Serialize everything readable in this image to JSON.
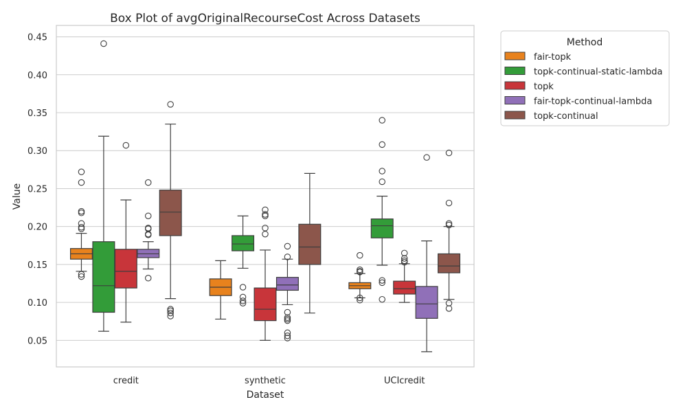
{
  "chart_data": {
    "type": "box",
    "title": "Box Plot of avgOriginalRecourseCost Across Datasets",
    "xlabel": "Dataset",
    "ylabel": "Value",
    "ylim": [
      0.015,
      0.465
    ],
    "yticks": [
      0.05,
      0.1,
      0.15,
      0.2,
      0.25,
      0.3,
      0.35,
      0.4,
      0.45
    ],
    "ytick_labels": [
      "0.05",
      "0.10",
      "0.15",
      "0.20",
      "0.25",
      "0.30",
      "0.35",
      "0.40",
      "0.45"
    ],
    "grid": "horizontal",
    "categories": [
      "credit",
      "synthetic",
      "UCIcredit"
    ],
    "legend": {
      "title": "Method",
      "placement": "outside-right"
    },
    "series": [
      {
        "name": "fair-topk",
        "color": "#e8821d",
        "boxes": [
          {
            "category": "credit",
            "whislo": 0.141,
            "q1": 0.157,
            "med": 0.164,
            "q3": 0.171,
            "whishi": 0.191,
            "fliers": [
              0.272,
              0.258,
              0.22,
              0.218,
              0.204,
              0.199,
              0.197,
              0.137,
              0.134
            ]
          },
          {
            "category": "synthetic",
            "whislo": 0.078,
            "q1": 0.109,
            "med": 0.12,
            "q3": 0.131,
            "whishi": 0.155,
            "fliers": []
          },
          {
            "category": "UCIcredit",
            "whislo": 0.106,
            "q1": 0.118,
            "med": 0.122,
            "q3": 0.126,
            "whishi": 0.138,
            "fliers": [
              0.162,
              0.143,
              0.141,
              0.14,
              0.106,
              0.103
            ]
          }
        ]
      },
      {
        "name": "topk-continual-static-lambda",
        "color": "#339c39",
        "boxes": [
          {
            "category": "credit",
            "whislo": 0.062,
            "q1": 0.087,
            "med": 0.122,
            "q3": 0.18,
            "whishi": 0.319,
            "fliers": [
              0.441
            ]
          },
          {
            "category": "synthetic",
            "whislo": 0.145,
            "q1": 0.168,
            "med": 0.177,
            "q3": 0.188,
            "whishi": 0.214,
            "fliers": [
              0.12,
              0.107,
              0.102,
              0.099
            ]
          },
          {
            "category": "UCIcredit",
            "whislo": 0.149,
            "q1": 0.185,
            "med": 0.201,
            "q3": 0.21,
            "whishi": 0.24,
            "fliers": [
              0.34,
              0.308,
              0.273,
              0.259,
              0.129,
              0.126,
              0.104
            ]
          }
        ]
      },
      {
        "name": "topk",
        "color": "#c8353a",
        "boxes": [
          {
            "category": "credit",
            "whislo": 0.074,
            "q1": 0.119,
            "med": 0.141,
            "q3": 0.17,
            "whishi": 0.235,
            "fliers": [
              0.307
            ]
          },
          {
            "category": "synthetic",
            "whislo": 0.05,
            "q1": 0.076,
            "med": 0.091,
            "q3": 0.119,
            "whishi": 0.169,
            "fliers": [
              0.222,
              0.216,
              0.214,
              0.198,
              0.19
            ]
          },
          {
            "category": "UCIcredit",
            "whislo": 0.1,
            "q1": 0.111,
            "med": 0.118,
            "q3": 0.128,
            "whishi": 0.151,
            "fliers": [
              0.165,
              0.158,
              0.155,
              0.153
            ]
          }
        ]
      },
      {
        "name": "fair-topk-continual-lambda",
        "color": "#9070b8",
        "boxes": [
          {
            "category": "credit",
            "whislo": 0.144,
            "q1": 0.159,
            "med": 0.164,
            "q3": 0.17,
            "whishi": 0.18,
            "fliers": [
              0.258,
              0.214,
              0.198,
              0.197,
              0.19,
              0.189,
              0.132
            ]
          },
          {
            "category": "synthetic",
            "whislo": 0.097,
            "q1": 0.116,
            "med": 0.123,
            "q3": 0.133,
            "whishi": 0.157,
            "fliers": [
              0.174,
              0.16,
              0.087,
              0.08,
              0.078,
              0.076,
              0.06,
              0.056,
              0.053
            ]
          },
          {
            "category": "UCIcredit",
            "whislo": 0.035,
            "q1": 0.079,
            "med": 0.098,
            "q3": 0.121,
            "whishi": 0.181,
            "fliers": [
              0.291
            ]
          }
        ]
      },
      {
        "name": "topk-continual",
        "color": "#8c564b",
        "boxes": [
          {
            "category": "credit",
            "whislo": 0.105,
            "q1": 0.188,
            "med": 0.219,
            "q3": 0.248,
            "whishi": 0.335,
            "fliers": [
              0.361,
              0.091,
              0.089,
              0.086,
              0.082
            ]
          },
          {
            "category": "synthetic",
            "whislo": 0.086,
            "q1": 0.15,
            "med": 0.173,
            "q3": 0.203,
            "whishi": 0.27,
            "fliers": []
          },
          {
            "category": "UCIcredit",
            "whislo": 0.104,
            "q1": 0.139,
            "med": 0.148,
            "q3": 0.164,
            "whishi": 0.2,
            "fliers": [
              0.297,
              0.231,
              0.204,
              0.202,
              0.099,
              0.092
            ]
          }
        ]
      }
    ]
  }
}
